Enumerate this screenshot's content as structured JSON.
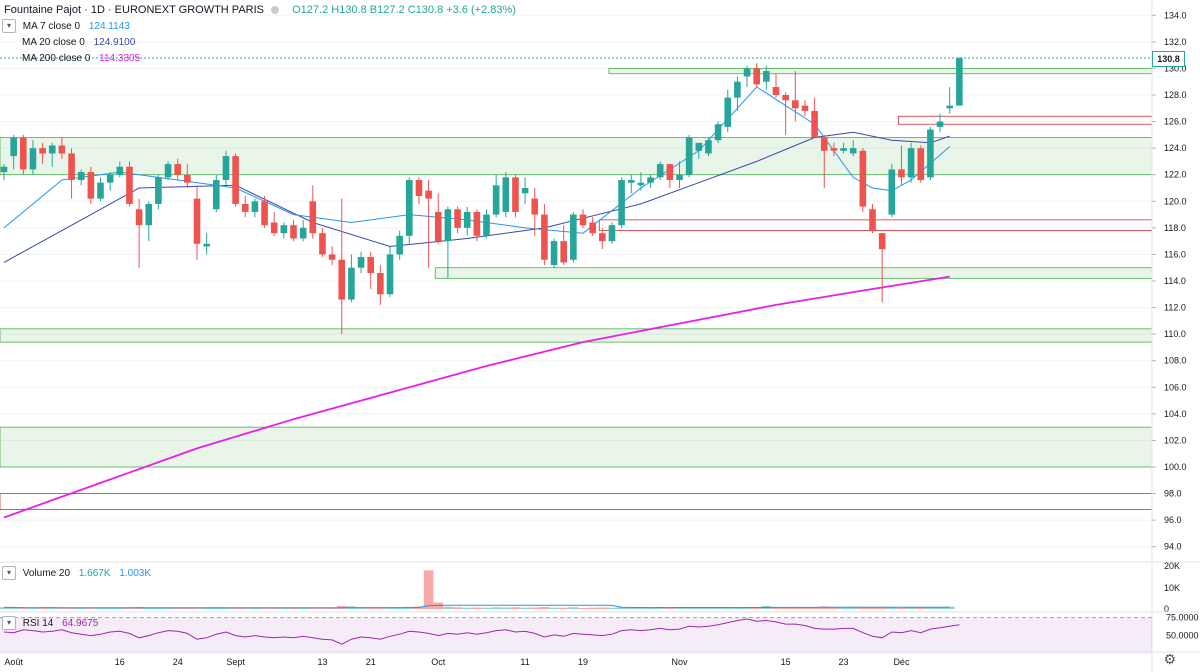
{
  "header": {
    "symbol_title": "Fountaine Pajot · 1D · EURONEXT GROWTH PARIS",
    "ohlc": "O127.2  H130.8  B127.2  C130.8  +3.6 (+2.83%)"
  },
  "indicators": {
    "ma7": {
      "label": "MA 7 close 0",
      "value": "124.1143",
      "color": "#2196f3"
    },
    "ma20": {
      "label": "MA 20 close 0",
      "value": "124.9100",
      "color": "#3949ab"
    },
    "ma200": {
      "label": "MA 200 close 0",
      "value": "114.3305",
      "color": "#e91ee9"
    }
  },
  "last_price_tag": "130.8",
  "volume": {
    "label": "Volume 20",
    "value1": "1.667K",
    "value2": "1.003K",
    "axis": [
      "20K",
      "10K",
      "0"
    ]
  },
  "rsi": {
    "label": "RSI 14",
    "value": "64.9675",
    "axis": [
      "75.0000",
      "50.0000"
    ]
  },
  "chart_data": {
    "type": "candlestick",
    "price_axis": {
      "ylim": [
        93.0,
        135.0
      ],
      "ticks": [
        "134.0",
        "132.0",
        "130.0",
        "128.0",
        "126.0",
        "124.0",
        "122.0",
        "120.0",
        "118.0",
        "116.0",
        "114.0",
        "112.0",
        "110.0",
        "108.0",
        "106.0",
        "104.0",
        "102.0",
        "100.0",
        "98.0",
        "96.0",
        "94.0"
      ]
    },
    "time_axis": [
      "Août",
      "16",
      "24",
      "Sept",
      "13",
      "21",
      "Oct",
      "11",
      "19",
      "Nov",
      "15",
      "23",
      "Déc"
    ],
    "candles": [
      [
        122.2,
        122.8,
        121.6,
        122.6
      ],
      [
        123.4,
        125.0,
        122.4,
        124.8
      ],
      [
        124.8,
        125.0,
        122.0,
        122.4
      ],
      [
        122.4,
        124.6,
        122.0,
        124.0
      ],
      [
        124.0,
        124.4,
        122.8,
        123.6
      ],
      [
        123.6,
        124.4,
        122.6,
        124.2
      ],
      [
        124.2,
        124.8,
        123.2,
        123.6
      ],
      [
        123.6,
        124.0,
        120.2,
        121.6
      ],
      [
        121.6,
        122.4,
        121.2,
        122.2
      ],
      [
        122.2,
        122.6,
        119.8,
        120.2
      ],
      [
        120.2,
        121.8,
        120.0,
        121.4
      ],
      [
        121.4,
        122.2,
        120.8,
        122.0
      ],
      [
        122.0,
        123.0,
        121.8,
        122.6
      ],
      [
        122.6,
        123.0,
        119.6,
        119.8
      ],
      [
        119.4,
        120.2,
        115.0,
        118.2
      ],
      [
        118.2,
        120.0,
        117.0,
        119.8
      ],
      [
        119.8,
        122.0,
        119.4,
        121.8
      ],
      [
        121.8,
        123.0,
        121.6,
        122.8
      ],
      [
        122.8,
        123.2,
        121.6,
        122.0
      ],
      [
        122.0,
        122.8,
        121.0,
        121.4
      ],
      [
        120.2,
        121.2,
        115.6,
        116.8
      ],
      [
        116.6,
        117.6,
        116.0,
        116.8
      ],
      [
        119.4,
        122.0,
        119.2,
        121.6
      ],
      [
        121.6,
        123.8,
        121.2,
        123.4
      ],
      [
        123.4,
        123.6,
        119.6,
        119.8
      ],
      [
        119.8,
        120.4,
        118.8,
        119.2
      ],
      [
        119.2,
        120.2,
        118.8,
        120.0
      ],
      [
        120.0,
        120.4,
        118.0,
        118.2
      ],
      [
        118.4,
        119.2,
        117.4,
        117.6
      ],
      [
        117.6,
        118.4,
        117.2,
        118.2
      ],
      [
        118.2,
        118.6,
        117.0,
        117.2
      ],
      [
        117.2,
        118.6,
        117.0,
        118.0
      ],
      [
        120.0,
        121.2,
        117.2,
        117.6
      ],
      [
        117.6,
        118.0,
        115.8,
        116.0
      ],
      [
        116.0,
        116.6,
        115.2,
        115.6
      ],
      [
        115.6,
        120.2,
        110.0,
        112.6
      ],
      [
        112.6,
        116.0,
        112.4,
        115.0
      ],
      [
        115.0,
        116.2,
        114.6,
        115.8
      ],
      [
        115.8,
        116.2,
        113.4,
        114.6
      ],
      [
        114.6,
        115.2,
        112.2,
        113.0
      ],
      [
        113.0,
        116.6,
        112.8,
        116.0
      ],
      [
        116.0,
        117.8,
        115.6,
        117.4
      ],
      [
        117.4,
        121.8,
        116.8,
        121.6
      ],
      [
        121.6,
        121.8,
        119.8,
        120.4
      ],
      [
        120.8,
        121.6,
        115.0,
        120.2
      ],
      [
        119.2,
        120.6,
        116.8,
        117.0
      ],
      [
        117.0,
        119.6,
        114.2,
        119.4
      ],
      [
        119.4,
        119.6,
        117.6,
        118.0
      ],
      [
        118.0,
        119.6,
        117.4,
        119.2
      ],
      [
        119.2,
        119.4,
        117.0,
        117.4
      ],
      [
        117.4,
        119.4,
        117.2,
        119.0
      ],
      [
        119.0,
        122.0,
        118.8,
        121.2
      ],
      [
        119.2,
        122.2,
        118.8,
        121.8
      ],
      [
        121.8,
        122.0,
        118.8,
        119.2
      ],
      [
        120.6,
        121.8,
        119.8,
        121.0
      ],
      [
        120.2,
        121.0,
        117.4,
        119.0
      ],
      [
        119.0,
        119.8,
        115.2,
        115.6
      ],
      [
        115.2,
        117.2,
        115.0,
        117.0
      ],
      [
        117.0,
        118.2,
        115.2,
        115.4
      ],
      [
        115.6,
        119.2,
        115.4,
        119.0
      ],
      [
        119.0,
        119.4,
        118.0,
        118.2
      ],
      [
        118.4,
        118.8,
        117.4,
        117.6
      ],
      [
        117.6,
        118.0,
        116.4,
        117.0
      ],
      [
        117.0,
        118.4,
        116.8,
        118.2
      ],
      [
        118.2,
        121.8,
        118.0,
        121.6
      ],
      [
        121.4,
        122.0,
        120.6,
        121.6
      ],
      [
        121.2,
        122.2,
        120.8,
        121.4
      ],
      [
        121.4,
        122.0,
        121.0,
        121.8
      ],
      [
        121.8,
        123.0,
        121.6,
        122.8
      ],
      [
        122.8,
        122.8,
        121.0,
        121.6
      ],
      [
        121.6,
        123.0,
        121.0,
        122.0
      ],
      [
        122.0,
        125.0,
        121.8,
        124.8
      ],
      [
        123.8,
        124.2,
        123.2,
        124.4
      ],
      [
        123.6,
        124.8,
        123.4,
        124.6
      ],
      [
        124.6,
        126.0,
        124.4,
        125.8
      ],
      [
        125.6,
        128.4,
        125.2,
        127.8
      ],
      [
        127.8,
        129.4,
        126.8,
        129.0
      ],
      [
        129.4,
        130.2,
        128.6,
        130.0
      ],
      [
        130.0,
        130.4,
        128.6,
        128.8
      ],
      [
        129.0,
        130.2,
        128.4,
        129.8
      ],
      [
        128.6,
        129.6,
        127.8,
        128.0
      ],
      [
        128.0,
        128.2,
        125.0,
        127.6
      ],
      [
        127.6,
        129.8,
        126.0,
        127.0
      ],
      [
        127.2,
        127.6,
        126.4,
        126.8
      ],
      [
        126.8,
        127.8,
        124.8,
        124.8
      ],
      [
        124.8,
        125.0,
        121.0,
        123.8
      ],
      [
        124.0,
        124.4,
        123.4,
        123.8
      ],
      [
        123.8,
        124.4,
        123.6,
        124.0
      ],
      [
        123.6,
        124.6,
        123.4,
        124.0
      ],
      [
        123.8,
        124.0,
        119.2,
        119.6
      ],
      [
        119.4,
        119.8,
        117.6,
        117.8
      ],
      [
        117.6,
        117.6,
        112.4,
        116.4
      ],
      [
        119.0,
        122.8,
        118.8,
        122.4
      ],
      [
        122.4,
        124.2,
        121.2,
        121.8
      ],
      [
        121.8,
        124.4,
        121.4,
        124.0
      ],
      [
        124.0,
        124.2,
        121.4,
        121.6
      ],
      [
        121.8,
        125.6,
        121.6,
        125.4
      ],
      [
        125.6,
        126.6,
        125.2,
        126.0
      ],
      [
        127.0,
        128.6,
        126.6,
        127.2
      ],
      [
        127.2,
        130.8,
        127.2,
        130.8
      ]
    ],
    "ma7": {
      "name": "MA 7 close 0",
      "color": "#2196f3",
      "points": [
        [
          0,
          118.0
        ],
        [
          6,
          121.6
        ],
        [
          12,
          122.2
        ],
        [
          18,
          121.6
        ],
        [
          24,
          121.0
        ],
        [
          30,
          119.0
        ],
        [
          36,
          118.4
        ],
        [
          42,
          119.0
        ],
        [
          48,
          118.6
        ],
        [
          54,
          118.0
        ],
        [
          60,
          117.6
        ],
        [
          66,
          121.0
        ],
        [
          72,
          123.8
        ],
        [
          78,
          128.6
        ],
        [
          84,
          125.8
        ],
        [
          88,
          121.8
        ],
        [
          90,
          121.0
        ],
        [
          92,
          120.8
        ],
        [
          94,
          121.6
        ],
        [
          98,
          124.1143
        ]
      ]
    },
    "ma20": {
      "name": "MA 20 close 0",
      "color": "#3949ab",
      "points": [
        [
          0,
          115.4
        ],
        [
          8,
          118.6
        ],
        [
          14,
          121.0
        ],
        [
          24,
          121.2
        ],
        [
          32,
          118.4
        ],
        [
          40,
          116.6
        ],
        [
          48,
          117.2
        ],
        [
          56,
          118.0
        ],
        [
          66,
          119.8
        ],
        [
          72,
          121.4
        ],
        [
          78,
          123.0
        ],
        [
          84,
          124.8
        ],
        [
          88,
          125.2
        ],
        [
          92,
          124.6
        ],
        [
          96,
          124.4
        ],
        [
          98,
          124.91
        ]
      ]
    },
    "ma200": {
      "name": "MA 200 close 0",
      "color": "#e91ee9",
      "points": [
        [
          0,
          96.2
        ],
        [
          10,
          98.8
        ],
        [
          20,
          101.4
        ],
        [
          30,
          103.6
        ],
        [
          40,
          105.6
        ],
        [
          50,
          107.6
        ],
        [
          60,
          109.4
        ],
        [
          70,
          110.8
        ],
        [
          80,
          112.2
        ],
        [
          90,
          113.4
        ],
        [
          98,
          114.33
        ]
      ]
    },
    "support_zones": [
      {
        "from": 124.8,
        "to": 122.0,
        "color": "green"
      },
      {
        "from": 110.4,
        "to": 109.4,
        "color": "green"
      },
      {
        "from": 103.0,
        "to": 100.0,
        "color": "green"
      },
      {
        "from": 130.0,
        "to": 129.6,
        "color": "green",
        "start": 63
      },
      {
        "from": 115.0,
        "to": 114.2,
        "color": "green",
        "start": 45
      },
      {
        "from": 126.4,
        "to": 125.8,
        "color": "red",
        "start": 93
      },
      {
        "from": 118.6,
        "to": 117.8,
        "color": "red",
        "start": 62
      },
      {
        "from": 98.0,
        "to": 96.8,
        "color": "red"
      }
    ],
    "volume": [
      0.8,
      0.6,
      0.6,
      0.5,
      0.7,
      0.6,
      0.5,
      0.6,
      0.6,
      0.5,
      0.7,
      0.5,
      0.4,
      0.6,
      0.9,
      0.6,
      0.6,
      0.5,
      0.5,
      0.6,
      0.7,
      0.6,
      0.8,
      0.6,
      0.5,
      0.4,
      0.6,
      0.5,
      0.4,
      0.5,
      0.6,
      0.5,
      0.6,
      0.5,
      0.6,
      1.4,
      1.2,
      0.6,
      0.5,
      0.7,
      0.6,
      0.8,
      1.0,
      1.2,
      18.0,
      3.0,
      1.0,
      0.8,
      0.6,
      0.7,
      0.6,
      0.8,
      0.7,
      0.8,
      0.6,
      0.7,
      0.9,
      0.6,
      0.6,
      0.8,
      0.5,
      0.6,
      0.7,
      0.6,
      0.8,
      0.6,
      0.6,
      0.5,
      0.8,
      0.6,
      0.7,
      0.9,
      0.7,
      0.8,
      0.6,
      0.6,
      0.8,
      0.9,
      0.7,
      1.4,
      0.8,
      0.7,
      0.6,
      0.7,
      0.8,
      1.2,
      0.7,
      0.6,
      1.0,
      0.6,
      0.8,
      1.0,
      0.8,
      0.6,
      0.7,
      0.8,
      0.7,
      0.9,
      1.1
    ],
    "rsi": [
      55,
      54,
      58,
      57,
      55,
      56,
      58,
      54,
      52,
      50,
      52,
      55,
      56,
      53,
      47,
      50,
      54,
      57,
      56,
      53,
      45,
      47,
      52,
      55,
      50,
      48,
      50,
      48,
      47,
      48,
      47,
      49,
      47,
      45,
      44,
      38,
      45,
      48,
      47,
      45,
      49,
      52,
      56,
      55,
      53,
      50,
      53,
      52,
      54,
      52,
      54,
      57,
      58,
      55,
      56,
      53,
      48,
      51,
      49,
      53,
      52,
      51,
      50,
      52,
      57,
      58,
      57,
      58,
      60,
      58,
      59,
      63,
      62,
      63,
      65,
      68,
      71,
      73,
      70,
      71,
      69,
      66,
      66,
      64,
      60,
      59,
      59,
      60,
      60,
      54,
      49,
      47,
      55,
      54,
      57,
      54,
      59,
      61,
      63,
      65
    ]
  }
}
